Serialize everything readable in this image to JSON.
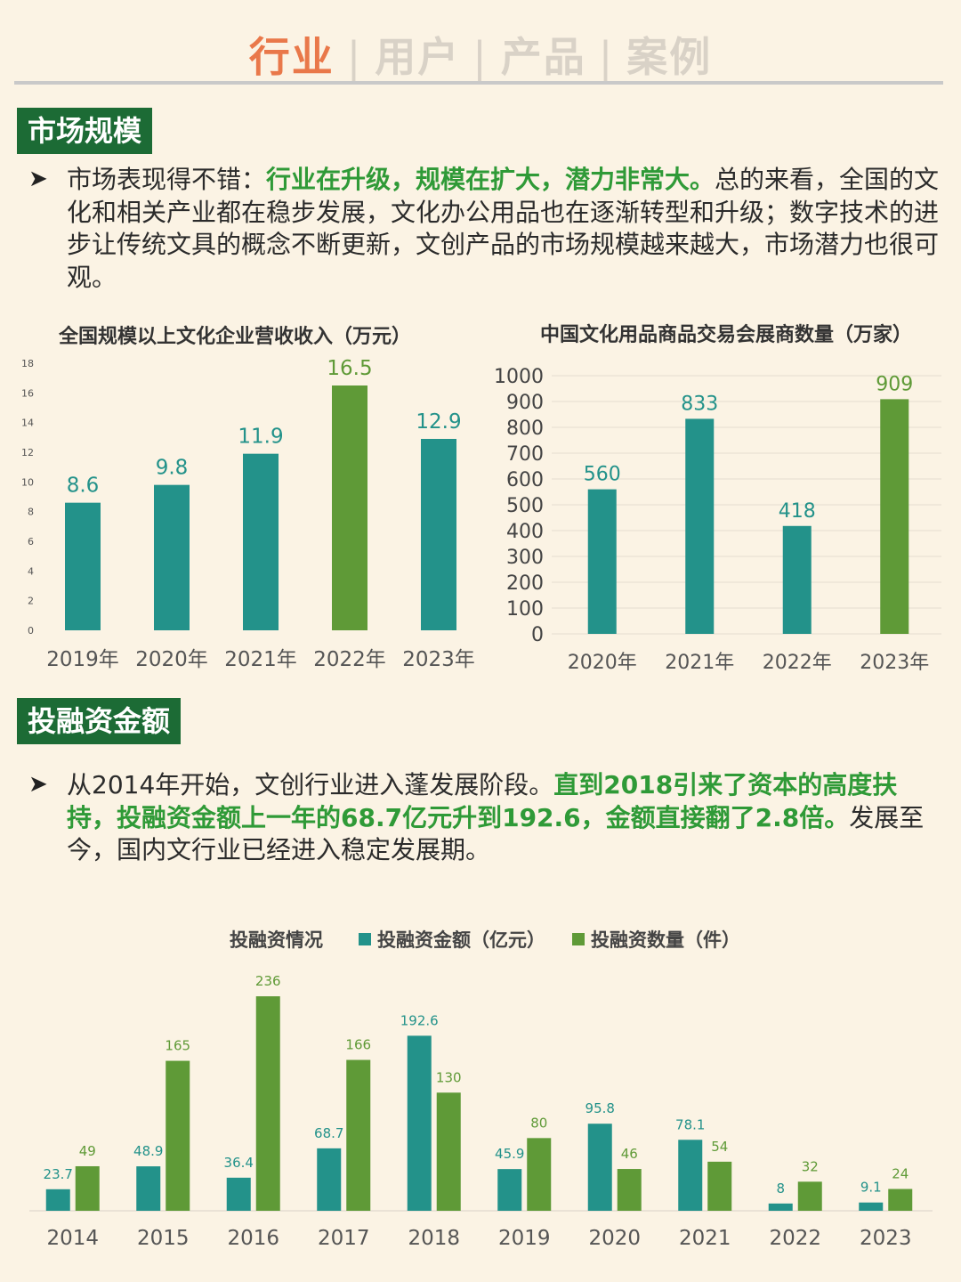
{
  "tabs": [
    "行业",
    "用户",
    "产品",
    "案例"
  ],
  "section1": {
    "tag": "市场规模",
    "para_prefix": "市场表现得不错：",
    "para_highlight": "行业在升级，规模在扩大，潜力非常大。",
    "para_rest": "总的来看，全国的文化和相关产业都在稳步发展，文化办公用品也在逐渐转型和升级；数字技术的进步让传统文具的概念不断更新，文创产品的市场规模越来越大，市场潜力也很可观。"
  },
  "section2": {
    "tag": "投融资金额",
    "para_prefix": "从2014年开始，文创行业进入蓬发展阶段。",
    "para_highlight": "直到2018引来了资本的高度扶持，投融资金额上一年的68.7亿元升到192.6，金额直接翻了2.8倍。",
    "para_rest": "发展至今，国内文行业已经进入稳定发展期。"
  },
  "colors": {
    "teal": "#23928a",
    "green": "#5f9a37",
    "tab_active": "#e9784a",
    "tag_bg": "#1c6b35",
    "highlight": "#2f9a37"
  },
  "chart_data": [
    {
      "type": "bar",
      "title": "全国规模以上文化企业营收收入（万元）",
      "categories": [
        "2019年",
        "2020年",
        "2021年",
        "2022年",
        "2023年"
      ],
      "values": [
        8.6,
        9.8,
        11.9,
        16.5,
        12.9
      ],
      "highlight_index": 3,
      "ylim": [
        0,
        18
      ],
      "yticks": [
        0,
        2,
        4,
        6,
        8,
        10,
        12,
        14,
        16,
        18
      ],
      "grid": false
    },
    {
      "type": "bar",
      "title": "中国文化用品商品交易会展商数量（万家）",
      "categories": [
        "2020年",
        "2021年",
        "2022年",
        "2023年"
      ],
      "values": [
        560,
        833,
        418,
        909
      ],
      "highlight_index": 3,
      "ylim": [
        0,
        1000
      ],
      "yticks": [
        0,
        100,
        200,
        300,
        400,
        500,
        600,
        700,
        800,
        900,
        1000
      ],
      "grid": true
    },
    {
      "type": "bar",
      "title": "投融资情况",
      "categories": [
        "2014",
        "2015",
        "2016",
        "2017",
        "2018",
        "2019",
        "2020",
        "2021",
        "2022",
        "2023"
      ],
      "series": [
        {
          "name": "投融资金额（亿元）",
          "values": [
            23.7,
            48.9,
            36.4,
            68.7,
            192.6,
            45.9,
            95.8,
            78.1,
            8,
            9.1
          ]
        },
        {
          "name": "投融资数量（件）",
          "values": [
            49,
            165,
            236,
            166,
            130,
            80,
            46,
            54,
            32,
            24
          ]
        }
      ],
      "ylim": [
        0,
        240
      ],
      "legend": "top"
    }
  ]
}
